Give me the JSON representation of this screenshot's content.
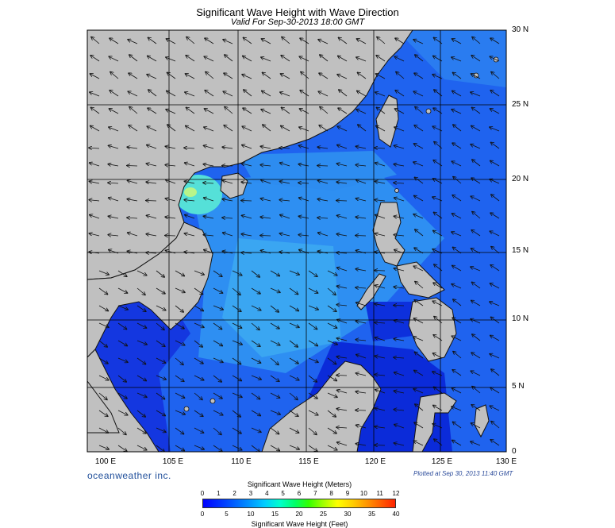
{
  "title": "Significant Wave Height with Wave Direction",
  "subtitle": "Valid For Sep-30-2013 18:00 GMT",
  "lat_labels": [
    "30 N",
    "25 N",
    "20 N",
    "15 N",
    "10 N",
    "5 N",
    "0"
  ],
  "lon_labels": [
    "100 E",
    "105 E",
    "110 E",
    "115 E",
    "120 E",
    "125 E",
    "130 E"
  ],
  "brand": "oceanweather inc.",
  "plotted": "Plotted at Sep 30, 2013 11:40 GMT",
  "colorbar": {
    "title_top": "Significant Wave Height (Meters)",
    "title_bottom": "Significant Wave Height (Feet)",
    "meters_ticks": [
      "0",
      "1",
      "2",
      "3",
      "4",
      "5",
      "6",
      "7",
      "8",
      "9",
      "10",
      "11",
      "12"
    ],
    "feet_ticks": [
      "0",
      "5",
      "10",
      "15",
      "20",
      "25",
      "30",
      "35",
      "40"
    ]
  },
  "colors": {
    "land": "#c0c0c0",
    "deep": "#0b2bd9",
    "mid": "#1f63ef",
    "light": "#2e8ff2",
    "high": "#52d9e6"
  }
}
